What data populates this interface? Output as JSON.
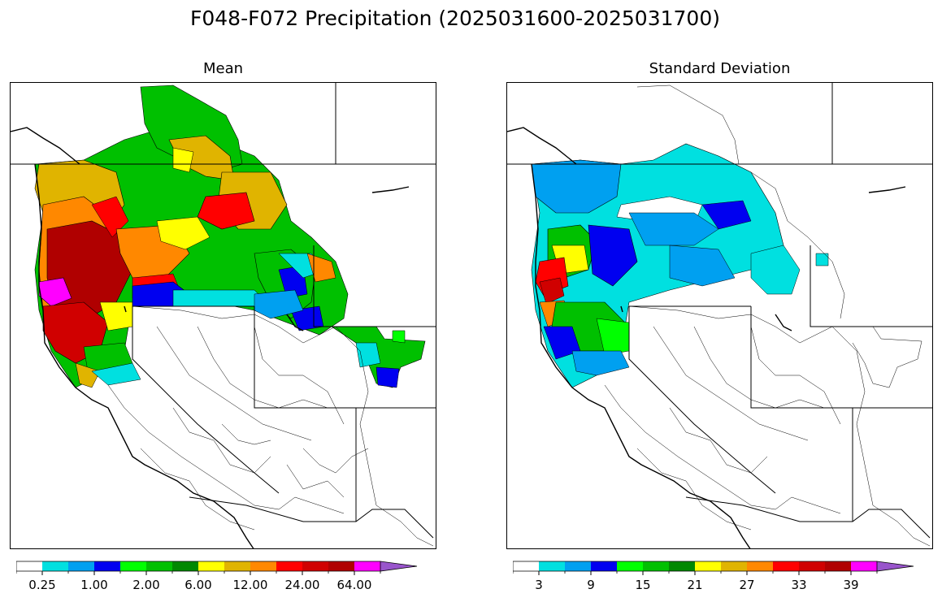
{
  "figure": {
    "title": "F048-F072 Precipitation (2025031600-2025031700)"
  },
  "panels": [
    {
      "id": "mean",
      "subtitle": "Mean",
      "colorbar": {
        "colors": [
          "#ffffff",
          "#00e0e0",
          "#00a0f0",
          "#0000f0",
          "#00ff00",
          "#00c000",
          "#008800",
          "#ffff00",
          "#e0b400",
          "#ff8800",
          "#ff0000",
          "#d00000",
          "#b00000",
          "#ff00ff",
          "#9955cc"
        ],
        "tick_labels": [
          "0.25",
          "1.00",
          "2.00",
          "6.00",
          "12.00",
          "24.00",
          "64.00"
        ]
      }
    },
    {
      "id": "stddev",
      "subtitle": "Standard Deviation",
      "colorbar": {
        "colors": [
          "#ffffff",
          "#00e0e0",
          "#00a0f0",
          "#0000f0",
          "#00ff00",
          "#00c000",
          "#008800",
          "#ffff00",
          "#e0b400",
          "#ff8800",
          "#ff0000",
          "#d00000",
          "#b00000",
          "#ff00ff",
          "#9955cc"
        ],
        "tick_labels": [
          "3",
          "9",
          "15",
          "21",
          "27",
          "33",
          "39"
        ]
      }
    }
  ]
}
